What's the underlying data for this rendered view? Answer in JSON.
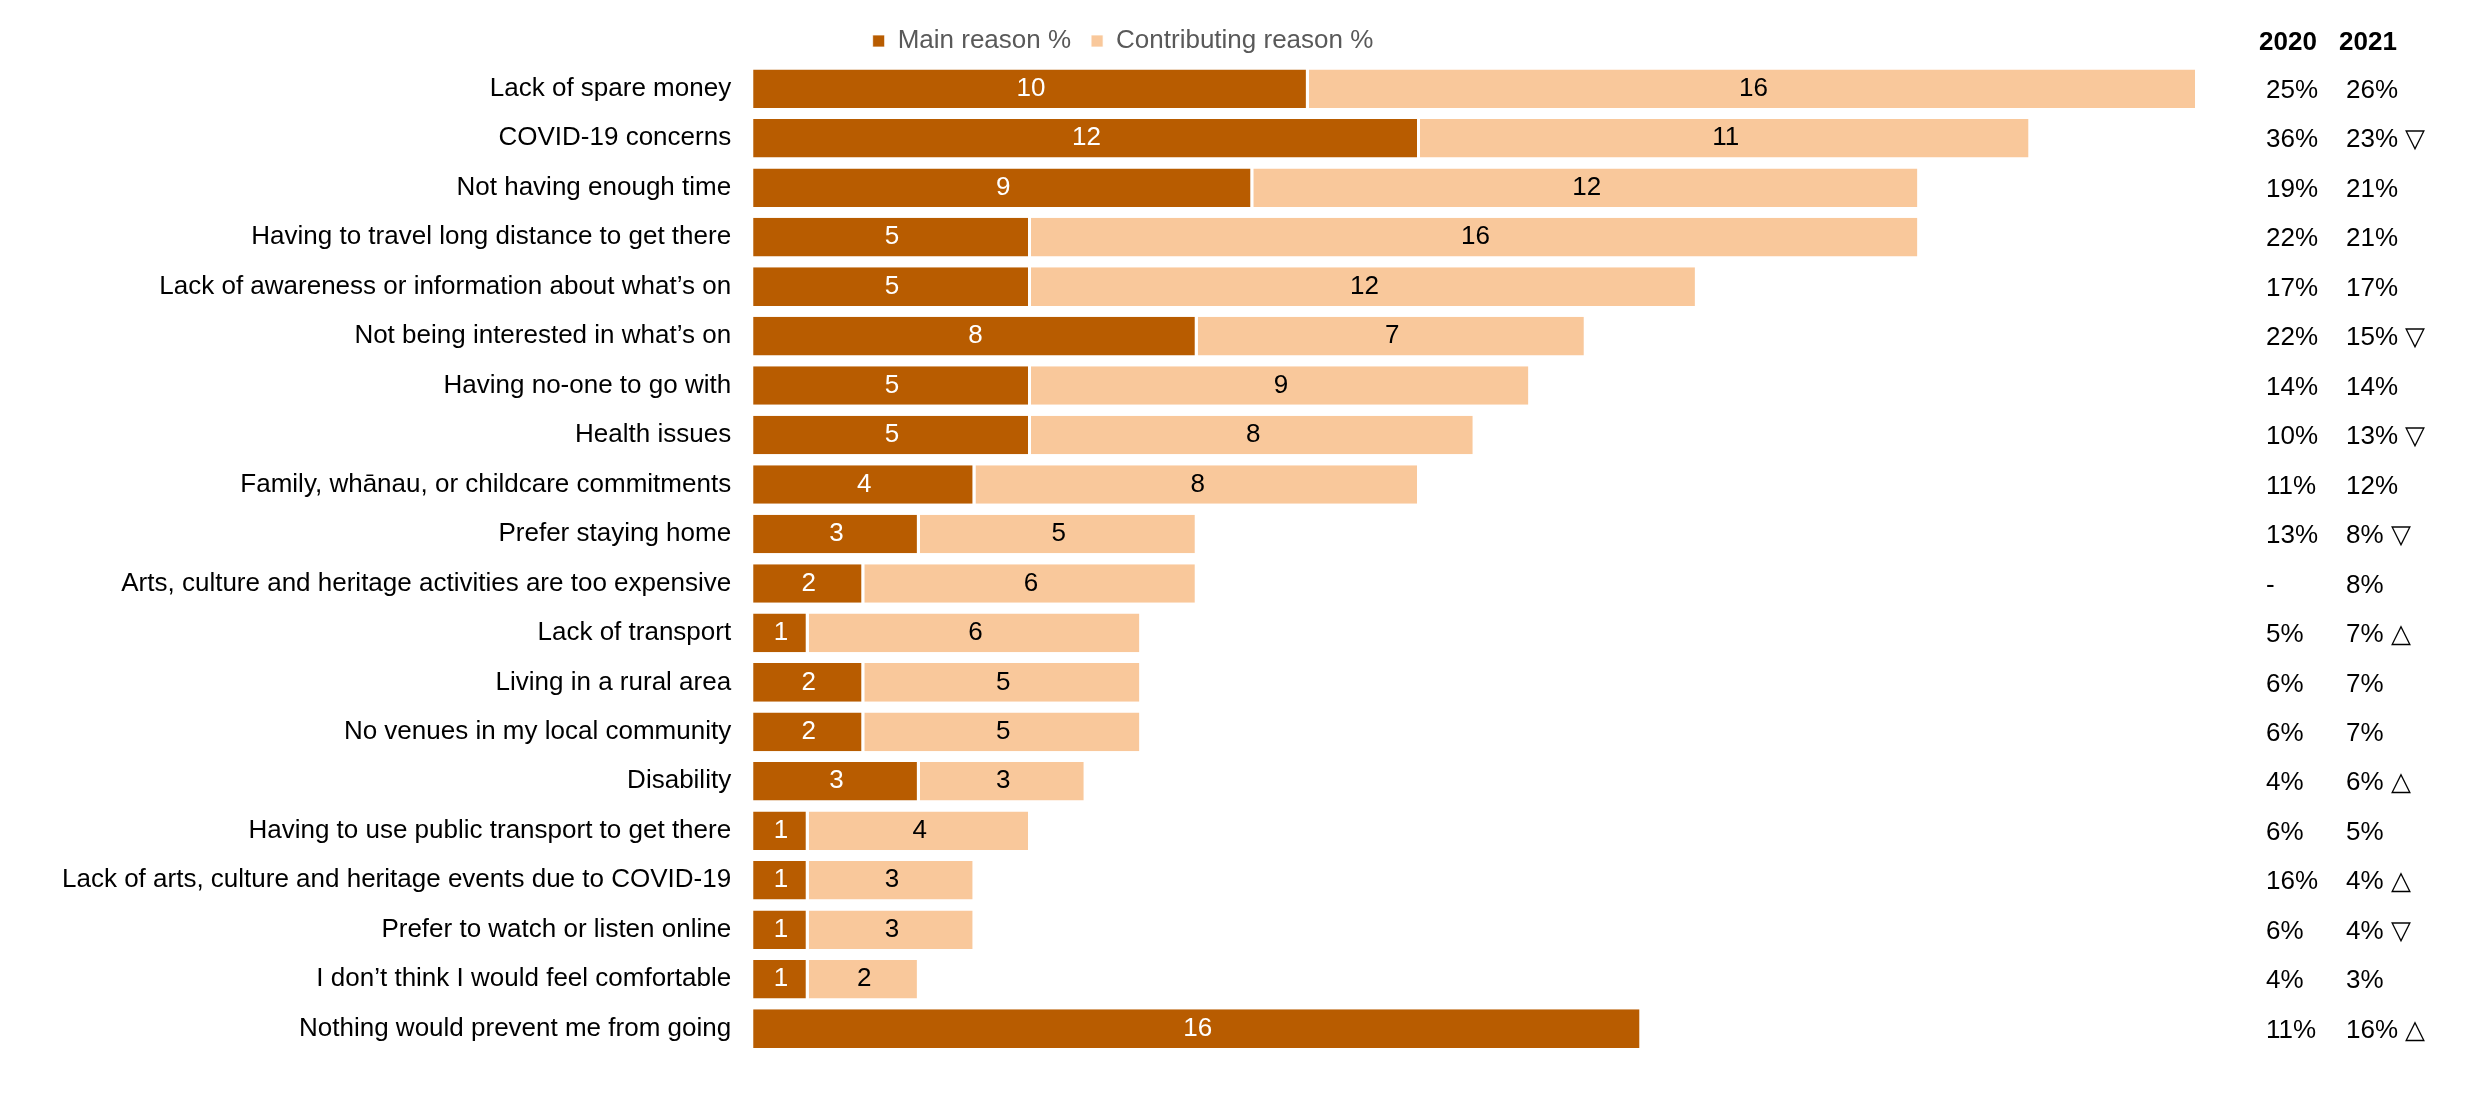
{
  "chart_data": {
    "type": "bar",
    "orientation": "horizontal",
    "stacked": true,
    "data_labels": true,
    "grid": false,
    "legend": "top",
    "categories": [
      "Lack of spare money",
      "COVID-19 concerns",
      "Not having enough time",
      "Having to travel long distance to get there",
      "Lack of awareness or information about what’s on",
      "Not being interested in what’s on",
      "Having no-one to go with",
      "Health issues",
      "Family, whānau, or childcare commitments",
      "Prefer staying home",
      "Arts, culture and heritage activities are too expensive",
      "Lack of transport",
      "Living in a rural area",
      "No venues in my local community",
      "Disability",
      "Having to use public transport to get there",
      "Lack of arts, culture and heritage events due to COVID-19",
      "Prefer to watch or listen online",
      "I don’t think I would feel comfortable",
      "Nothing would prevent me from going"
    ],
    "series": [
      {
        "name": "Main reason %",
        "color": "#b85c00",
        "values": [
          10,
          12,
          9,
          5,
          5,
          8,
          5,
          5,
          4,
          3,
          2,
          1,
          2,
          2,
          3,
          1,
          1,
          1,
          1,
          16
        ]
      },
      {
        "name": "Contributing reason %",
        "color": "#f9c89b",
        "values": [
          16,
          11,
          12,
          16,
          12,
          7,
          9,
          8,
          8,
          5,
          6,
          6,
          5,
          5,
          3,
          4,
          3,
          3,
          2,
          null
        ]
      }
    ],
    "annotations": [
      "2020",
      "2021",
      "25%",
      "26%",
      "36%",
      "23% ▽",
      "19%",
      "21%",
      "22%",
      "21%",
      "17%",
      "17%",
      "22%",
      "15% ▽",
      "14%",
      "14%",
      "10%",
      "13% ▽",
      "11%",
      "12%",
      "13%",
      "8% ▽",
      "-",
      "8%",
      "5%",
      "7% △",
      "6%",
      "7%",
      "6%",
      "7%",
      "4%",
      "6% △",
      "6%",
      "5%",
      "16%",
      "4% △",
      "6%",
      "4% ▽",
      "4%",
      "3%",
      "11%",
      "16% △"
    ]
  }
}
